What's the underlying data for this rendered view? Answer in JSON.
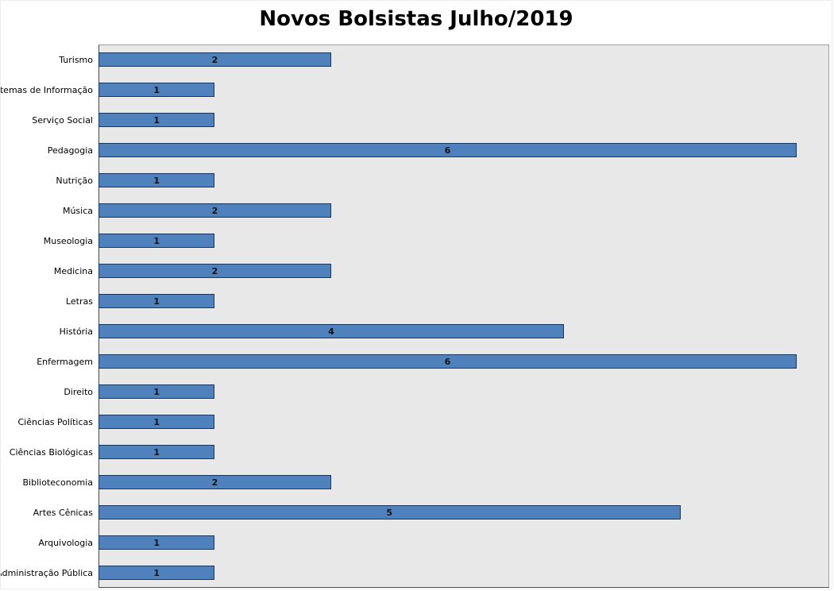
{
  "chart_data": {
    "type": "bar",
    "orientation": "horizontal",
    "title": "Novos Bolsistas Julho/2019",
    "categories": [
      "Turismo",
      "Sistemas de Informação",
      "Serviço Social",
      "Pedagogia",
      "Nutrição",
      "Música",
      "Museologia",
      "Medicina",
      "Letras",
      "História",
      "Enfermagem",
      "Direito",
      "Ciências Políticas",
      "Ciências Biológicas",
      "Biblioteconomia",
      "Artes Cênicas",
      "Arquivologia",
      "Administração Pública"
    ],
    "values": [
      2,
      1,
      1,
      6,
      1,
      2,
      1,
      2,
      1,
      4,
      6,
      1,
      1,
      1,
      2,
      5,
      1,
      1
    ],
    "xlim": [
      0,
      6.28
    ],
    "grid": false,
    "legend": false,
    "data_labels": "center",
    "bar_color": "#4f81bd",
    "bar_border_color": "#17375e",
    "plot_bg_color": "#e8e8e8",
    "page_bg_color": "#ffffff"
  }
}
